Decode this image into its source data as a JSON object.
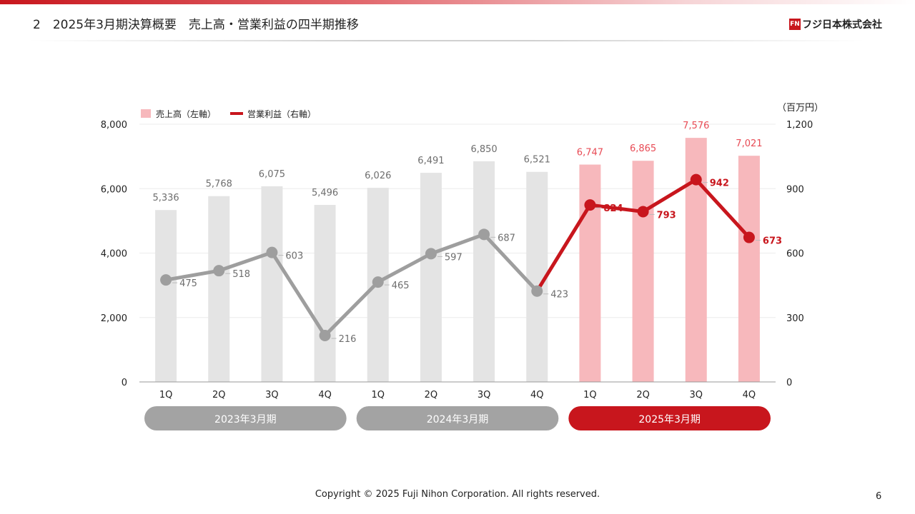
{
  "header": {
    "title": "2　2025年3月期決算概要　売上高・営業利益の四半期推移",
    "logo_mark": "FN",
    "logo_text": "フジ日本株式会社"
  },
  "footer": {
    "copyright": "Copyright © 2025 Fuji Nihon Corporation.  All rights reserved.",
    "page_number": "6"
  },
  "colors": {
    "bar_past": "#e4e4e4",
    "bar_current": "#f7b8bc",
    "line_past": "#9e9e9e",
    "line_current": "#c8161d",
    "label_past": "#6e6e6e",
    "label_current_bar": "#e84b55",
    "label_current_line": "#c8161d",
    "period_past": "#a3a3a3",
    "period_current": "#c8161d"
  },
  "chart_data": {
    "type": "bar",
    "categories": [
      "1Q",
      "2Q",
      "3Q",
      "4Q",
      "1Q",
      "2Q",
      "3Q",
      "4Q",
      "1Q",
      "2Q",
      "3Q",
      "4Q"
    ],
    "periods": [
      {
        "label": "2023年3月期",
        "highlight": false
      },
      {
        "label": "2024年3月期",
        "highlight": false
      },
      {
        "label": "2025年3月期",
        "highlight": true
      }
    ],
    "series": [
      {
        "name": "売上高（左軸）",
        "type": "bar",
        "axis": "left",
        "values": [
          5336,
          5768,
          6075,
          5496,
          6026,
          6491,
          6850,
          6521,
          6747,
          6865,
          7576,
          7021
        ],
        "labels": [
          "5,336",
          "5,768",
          "6,075",
          "5,496",
          "6,026",
          "6,491",
          "6,850",
          "6,521",
          "6,747",
          "6,865",
          "7,576",
          "7,021"
        ]
      },
      {
        "name": "営業利益（右軸）",
        "type": "line",
        "axis": "right",
        "values": [
          475,
          518,
          603,
          216,
          465,
          597,
          687,
          423,
          824,
          793,
          942,
          673
        ],
        "labels": [
          "475",
          "518",
          "603",
          "216",
          "465",
          "597",
          "687",
          "423",
          "824",
          "793",
          "942",
          "673"
        ]
      }
    ],
    "left_axis": {
      "range": [
        0,
        8000
      ],
      "ticks": [
        "0",
        "2,000",
        "4,000",
        "6,000",
        "8,000"
      ]
    },
    "right_axis": {
      "range": [
        0,
        1200
      ],
      "ticks": [
        "0",
        "300",
        "600",
        "900",
        "1,200"
      ],
      "unit": "（百万円）"
    },
    "legend": "top-left",
    "grid": true
  }
}
